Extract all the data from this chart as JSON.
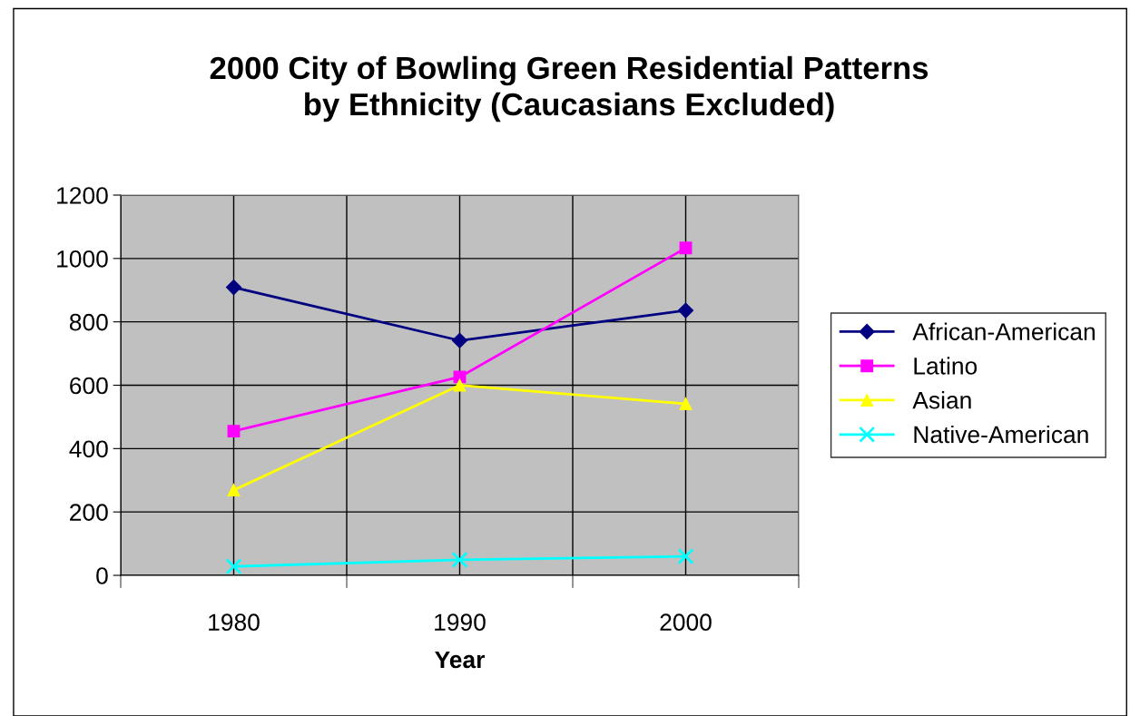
{
  "chart_data": {
    "type": "line",
    "title": "2000 City of Bowling Green Residential Patterns\nby Ethnicity (Caucasians Excluded)",
    "xlabel": "Year",
    "categories": [
      "1980",
      "1990",
      "2000"
    ],
    "series": [
      {
        "name": "African-American",
        "color": "#000080",
        "marker": "diamond",
        "values": [
          909,
          741,
          836
        ]
      },
      {
        "name": "Latino",
        "color": "#ff00ff",
        "marker": "square",
        "values": [
          455,
          626,
          1033
        ]
      },
      {
        "name": "Asian",
        "color": "#ffff00",
        "marker": "triangle",
        "values": [
          269,
          600,
          541
        ]
      },
      {
        "name": "Native-American",
        "color": "#00ffff",
        "marker": "cross",
        "values": [
          28,
          49,
          60
        ]
      }
    ],
    "ylim": [
      0,
      1200
    ],
    "yticks": [
      0,
      200,
      400,
      600,
      800,
      1000,
      1200
    ],
    "grid": true,
    "legend": "right"
  }
}
